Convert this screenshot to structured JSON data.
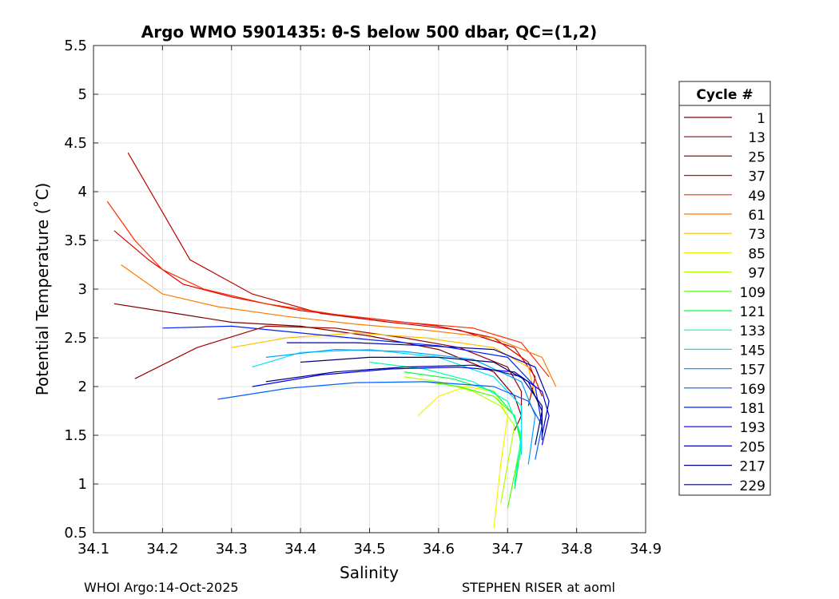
{
  "chart_data": {
    "type": "line",
    "title": "Argo WMO 5901435: θ-S below 500 dbar,  QC=(1,2)",
    "xlabel": "Salinity",
    "ylabel": "Potential Temperature (˚C)",
    "xlim": [
      34.1,
      34.9
    ],
    "ylim": [
      0.5,
      5.5
    ],
    "xticks": [
      "34.1",
      "34.2",
      "34.3",
      "34.4",
      "34.5",
      "34.6",
      "34.7",
      "34.8",
      "34.9"
    ],
    "yticks": [
      "0.5",
      "1",
      "1.5",
      "2",
      "2.5",
      "3",
      "3.5",
      "4",
      "4.5",
      "5",
      "5.5"
    ],
    "grid": true,
    "legend_title": "Cycle #",
    "legend_position": "right-outside",
    "series": [
      {
        "name": "1",
        "color": "#800000",
        "x": [
          34.13,
          34.22,
          34.3,
          34.4,
          34.5,
          34.6,
          34.68,
          34.71,
          34.72,
          34.71
        ],
        "y": [
          2.85,
          2.75,
          2.66,
          2.62,
          2.52,
          2.38,
          2.15,
          1.9,
          1.7,
          1.55
        ]
      },
      {
        "name": "13",
        "color": "#a00000",
        "x": [
          34.16,
          34.25,
          34.35,
          34.45,
          34.55,
          34.63,
          34.7,
          34.72,
          34.72
        ],
        "y": [
          2.08,
          2.4,
          2.62,
          2.6,
          2.5,
          2.4,
          2.2,
          1.95,
          1.7
        ]
      },
      {
        "name": "25",
        "color": "#c00000",
        "x": [
          34.15,
          34.24,
          34.33,
          34.43,
          34.53,
          34.63,
          34.71,
          34.74,
          34.73
        ],
        "y": [
          4.4,
          3.3,
          2.95,
          2.75,
          2.66,
          2.58,
          2.4,
          2.1,
          1.8
        ]
      },
      {
        "name": "37",
        "color": "#e00000",
        "x": [
          34.13,
          34.18,
          34.23,
          34.3,
          34.4,
          34.5,
          34.6,
          34.68,
          34.73,
          34.75
        ],
        "y": [
          3.6,
          3.3,
          3.05,
          2.92,
          2.78,
          2.7,
          2.62,
          2.5,
          2.25,
          1.9
        ]
      },
      {
        "name": "49",
        "color": "#ff2a00",
        "x": [
          34.12,
          34.16,
          34.2,
          34.26,
          34.35,
          34.45,
          34.55,
          34.65,
          34.72,
          34.76
        ],
        "y": [
          3.9,
          3.5,
          3.2,
          3.0,
          2.85,
          2.74,
          2.66,
          2.6,
          2.45,
          2.1
        ]
      },
      {
        "name": "61",
        "color": "#ff7b00",
        "x": [
          34.14,
          34.2,
          34.28,
          34.38,
          34.48,
          34.58,
          34.68,
          34.75,
          34.77
        ],
        "y": [
          3.25,
          2.95,
          2.82,
          2.72,
          2.64,
          2.58,
          2.5,
          2.3,
          2.0
        ]
      },
      {
        "name": "73",
        "color": "#ffbf00",
        "x": [
          34.3,
          34.38,
          34.48,
          34.58,
          34.68,
          34.73,
          34.74
        ],
        "y": [
          2.4,
          2.5,
          2.55,
          2.5,
          2.4,
          2.2,
          1.9
        ]
      },
      {
        "name": "85",
        "color": "#f5f500",
        "x": [
          34.57,
          34.6,
          34.64,
          34.68,
          34.7,
          34.69,
          34.68
        ],
        "y": [
          1.7,
          1.9,
          2.0,
          1.95,
          1.7,
          1.2,
          0.55
        ]
      },
      {
        "name": "97",
        "color": "#b0ff00",
        "x": [
          34.55,
          34.6,
          34.65,
          34.69,
          34.71,
          34.7,
          34.69
        ],
        "y": [
          2.1,
          2.05,
          1.95,
          1.8,
          1.6,
          1.2,
          0.8
        ]
      },
      {
        "name": "109",
        "color": "#4dff00",
        "x": [
          34.58,
          34.63,
          34.68,
          34.71,
          34.72,
          34.71,
          34.7
        ],
        "y": [
          2.05,
          2.0,
          1.9,
          1.7,
          1.45,
          1.1,
          0.75
        ]
      },
      {
        "name": "121",
        "color": "#00ff46",
        "x": [
          34.55,
          34.62,
          34.68,
          34.71,
          34.72,
          34.71
        ],
        "y": [
          2.15,
          2.08,
          1.95,
          1.7,
          1.4,
          0.95
        ]
      },
      {
        "name": "133",
        "color": "#00ffb4",
        "x": [
          34.5,
          34.58,
          34.65,
          34.7,
          34.72,
          34.71
        ],
        "y": [
          2.25,
          2.18,
          2.05,
          1.85,
          1.5,
          1.0
        ]
      },
      {
        "name": "145",
        "color": "#00e0ff",
        "x": [
          34.33,
          34.4,
          34.5,
          34.6,
          34.68,
          34.72,
          34.72
        ],
        "y": [
          2.2,
          2.35,
          2.38,
          2.3,
          2.1,
          1.8,
          1.3
        ]
      },
      {
        "name": "157",
        "color": "#00a0ff",
        "x": [
          34.35,
          34.45,
          34.55,
          34.65,
          34.72,
          34.74,
          34.73
        ],
        "y": [
          2.3,
          2.38,
          2.36,
          2.28,
          2.05,
          1.7,
          1.2
        ]
      },
      {
        "name": "169",
        "color": "#0060ff",
        "x": [
          34.28,
          34.38,
          34.48,
          34.58,
          34.68,
          34.73,
          34.75,
          34.74
        ],
        "y": [
          1.87,
          1.98,
          2.04,
          2.05,
          2.0,
          1.85,
          1.6,
          1.25
        ]
      },
      {
        "name": "181",
        "color": "#0020ff",
        "x": [
          34.2,
          34.3,
          34.4,
          34.5,
          34.6,
          34.7,
          34.74,
          34.75
        ],
        "y": [
          2.6,
          2.62,
          2.55,
          2.48,
          2.42,
          2.3,
          2.0,
          1.6
        ]
      },
      {
        "name": "193",
        "color": "#0000e0",
        "x": [
          34.33,
          34.43,
          34.53,
          34.63,
          34.71,
          34.75,
          34.76,
          34.75
        ],
        "y": [
          2.0,
          2.12,
          2.18,
          2.2,
          2.15,
          1.95,
          1.7,
          1.4
        ]
      },
      {
        "name": "205",
        "color": "#0000b0",
        "x": [
          34.38,
          34.48,
          34.58,
          34.68,
          34.74,
          34.76,
          34.75
        ],
        "y": [
          2.45,
          2.45,
          2.42,
          2.38,
          2.2,
          1.85,
          1.5
        ]
      },
      {
        "name": "217",
        "color": "#000090",
        "x": [
          34.35,
          34.45,
          34.55,
          34.65,
          34.72,
          34.75,
          34.75
        ],
        "y": [
          2.05,
          2.15,
          2.2,
          2.22,
          2.1,
          1.8,
          1.45
        ]
      },
      {
        "name": "229",
        "color": "#000070",
        "x": [
          34.4,
          34.5,
          34.6,
          34.68,
          34.73,
          34.75,
          34.74
        ],
        "y": [
          2.25,
          2.3,
          2.3,
          2.25,
          2.05,
          1.75,
          1.4
        ]
      }
    ]
  },
  "footer": {
    "left": "WHOI Argo:14-Oct-2025",
    "right": "STEPHEN RISER at aoml"
  }
}
